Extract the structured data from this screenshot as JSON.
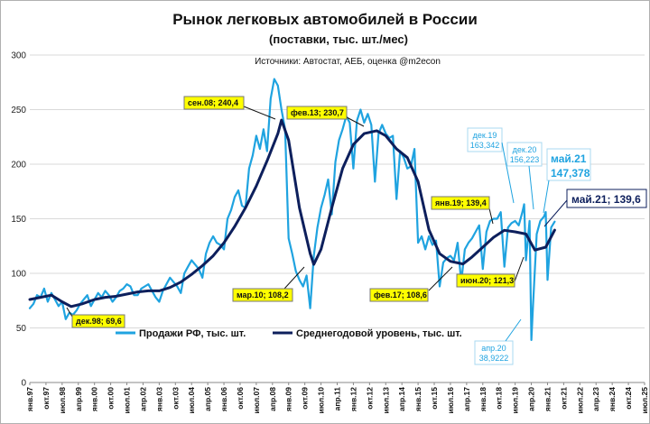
{
  "chart_data": {
    "type": "line",
    "title": "Рынок легковых автомобилей в России",
    "subtitle": "(поставки,  тыс. шт./мес)",
    "source": "Источники: Автостат, АЕБ, оценка @m2econ",
    "ylim": [
      0,
      300
    ],
    "yticks": [
      0,
      50,
      100,
      150,
      200,
      250,
      300
    ],
    "xticks": [
      "янв.97",
      "окт.97",
      "июл.98",
      "апр.99",
      "янв.00",
      "окт.00",
      "июл.01",
      "апр.02",
      "янв.03",
      "окт.03",
      "июл.04",
      "апр.05",
      "янв.06",
      "окт.06",
      "июл.07",
      "апр.08",
      "янв.09",
      "окт.09",
      "июл.10",
      "апр.11",
      "янв.12",
      "окт.12",
      "июл.13",
      "апр.14",
      "янв.15",
      "окт.15",
      "июл.16",
      "апр.17",
      "янв.18",
      "окт.18",
      "июл.19",
      "апр.20",
      "янв.21",
      "окт.21",
      "июл.22",
      "апр.23",
      "янв.24",
      "окт.24",
      "июл.25"
    ],
    "grid": true,
    "legend_position": "bottom-left",
    "series": [
      {
        "name": "Продажи РФ, тыс. шт.",
        "color": "#1fa3e0",
        "points": [
          [
            "1997-01",
            68
          ],
          [
            "1997-03",
            72
          ],
          [
            "1997-05",
            80
          ],
          [
            "1997-07",
            78
          ],
          [
            "1997-09",
            86
          ],
          [
            "1997-11",
            74
          ],
          [
            "1998-01",
            82
          ],
          [
            "1998-03",
            76
          ],
          [
            "1998-05",
            70
          ],
          [
            "1998-07",
            74
          ],
          [
            "1998-09",
            58
          ],
          [
            "1998-11",
            64
          ],
          [
            "1999-01",
            62
          ],
          [
            "1999-03",
            66
          ],
          [
            "1999-05",
            72
          ],
          [
            "1999-07",
            76
          ],
          [
            "1999-09",
            80
          ],
          [
            "1999-11",
            70
          ],
          [
            "2000-01",
            76
          ],
          [
            "2000-03",
            82
          ],
          [
            "2000-05",
            78
          ],
          [
            "2000-07",
            84
          ],
          [
            "2000-09",
            80
          ],
          [
            "2000-11",
            74
          ],
          [
            "2001-01",
            78
          ],
          [
            "2001-03",
            84
          ],
          [
            "2001-05",
            86
          ],
          [
            "2001-07",
            90
          ],
          [
            "2001-09",
            88
          ],
          [
            "2001-11",
            80
          ],
          [
            "2002-01",
            80
          ],
          [
            "2002-03",
            86
          ],
          [
            "2002-05",
            88
          ],
          [
            "2002-07",
            90
          ],
          [
            "2002-09",
            84
          ],
          [
            "2002-11",
            78
          ],
          [
            "2003-01",
            74
          ],
          [
            "2003-03",
            84
          ],
          [
            "2003-05",
            90
          ],
          [
            "2003-07",
            96
          ],
          [
            "2003-09",
            92
          ],
          [
            "2003-11",
            88
          ],
          [
            "2004-01",
            82
          ],
          [
            "2004-03",
            100
          ],
          [
            "2004-05",
            106
          ],
          [
            "2004-07",
            112
          ],
          [
            "2004-09",
            108
          ],
          [
            "2004-11",
            104
          ],
          [
            "2005-01",
            96
          ],
          [
            "2005-03",
            118
          ],
          [
            "2005-05",
            128
          ],
          [
            "2005-07",
            134
          ],
          [
            "2005-09",
            128
          ],
          [
            "2005-11",
            126
          ],
          [
            "2006-01",
            122
          ],
          [
            "2006-03",
            150
          ],
          [
            "2006-05",
            158
          ],
          [
            "2006-07",
            170
          ],
          [
            "2006-09",
            176
          ],
          [
            "2006-11",
            162
          ],
          [
            "2007-01",
            160
          ],
          [
            "2007-03",
            196
          ],
          [
            "2007-05",
            208
          ],
          [
            "2007-07",
            226
          ],
          [
            "2007-09",
            214
          ],
          [
            "2007-11",
            232
          ],
          [
            "2008-01",
            212
          ],
          [
            "2008-03",
            260
          ],
          [
            "2008-05",
            278
          ],
          [
            "2008-07",
            272
          ],
          [
            "2008-09",
            250
          ],
          [
            "2008-11",
            232
          ],
          [
            "2009-01",
            132
          ],
          [
            "2009-03",
            118
          ],
          [
            "2009-05",
            102
          ],
          [
            "2009-07",
            94
          ],
          [
            "2009-09",
            88
          ],
          [
            "2009-11",
            98
          ],
          [
            "2010-01",
            68
          ],
          [
            "2010-03",
            116
          ],
          [
            "2010-05",
            142
          ],
          [
            "2010-07",
            160
          ],
          [
            "2010-09",
            172
          ],
          [
            "2010-11",
            186
          ],
          [
            "2011-01",
            154
          ],
          [
            "2011-03",
            202
          ],
          [
            "2011-05",
            222
          ],
          [
            "2011-07",
            232
          ],
          [
            "2011-09",
            244
          ],
          [
            "2011-11",
            238
          ],
          [
            "2012-01",
            196
          ],
          [
            "2012-03",
            240
          ],
          [
            "2012-05",
            250
          ],
          [
            "2012-07",
            238
          ],
          [
            "2012-09",
            246
          ],
          [
            "2012-11",
            236
          ],
          [
            "2013-01",
            184
          ],
          [
            "2013-03",
            228
          ],
          [
            "2013-05",
            236
          ],
          [
            "2013-07",
            228
          ],
          [
            "2013-09",
            224
          ],
          [
            "2013-11",
            226
          ],
          [
            "2014-01",
            168
          ],
          [
            "2014-03",
            212
          ],
          [
            "2014-05",
            206
          ],
          [
            "2014-07",
            196
          ],
          [
            "2014-09",
            198
          ],
          [
            "2014-11",
            214
          ],
          [
            "2015-01",
            128
          ],
          [
            "2015-03",
            134
          ],
          [
            "2015-05",
            122
          ],
          [
            "2015-07",
            134
          ],
          [
            "2015-09",
            126
          ],
          [
            "2015-11",
            130
          ],
          [
            "2016-01",
            88
          ],
          [
            "2016-03",
            110
          ],
          [
            "2016-05",
            114
          ],
          [
            "2016-07",
            116
          ],
          [
            "2016-09",
            112
          ],
          [
            "2016-11",
            128
          ],
          [
            "2017-01",
            92
          ],
          [
            "2017-03",
            122
          ],
          [
            "2017-05",
            128
          ],
          [
            "2017-07",
            132
          ],
          [
            "2017-09",
            138
          ],
          [
            "2017-11",
            144
          ],
          [
            "2018-01",
            104
          ],
          [
            "2018-03",
            138
          ],
          [
            "2018-05",
            148
          ],
          [
            "2018-07",
            150
          ],
          [
            "2018-09",
            150
          ],
          [
            "2018-11",
            156
          ],
          [
            "2019-01",
            106
          ],
          [
            "2019-03",
            142
          ],
          [
            "2019-05",
            146
          ],
          [
            "2019-07",
            148
          ],
          [
            "2019-09",
            144
          ],
          [
            "2019-11",
            156
          ],
          [
            "2019-12",
            163.342
          ],
          [
            "2020-01",
            112
          ],
          [
            "2020-03",
            148
          ],
          [
            "2020-04",
            38.9222
          ],
          [
            "2020-05",
            72
          ],
          [
            "2020-07",
            136
          ],
          [
            "2020-09",
            148
          ],
          [
            "2020-11",
            152
          ],
          [
            "2020-12",
            156.223
          ],
          [
            "2021-01",
            94
          ],
          [
            "2021-03",
            142
          ],
          [
            "2021-05",
            147.378
          ]
        ]
      },
      {
        "name": "Среднегодовой уровень, тыс. шт.",
        "color": "#0d1f5c",
        "points": [
          [
            "1997-01",
            76
          ],
          [
            "1997-07",
            78
          ],
          [
            "1998-01",
            80
          ],
          [
            "1998-07",
            74
          ],
          [
            "1998-12",
            69.6
          ],
          [
            "1999-06",
            72
          ],
          [
            "2000-01",
            76
          ],
          [
            "2000-07",
            78
          ],
          [
            "2001-01",
            79
          ],
          [
            "2001-07",
            81
          ],
          [
            "2002-01",
            83
          ],
          [
            "2002-07",
            84
          ],
          [
            "2003-01",
            84
          ],
          [
            "2003-07",
            87
          ],
          [
            "2004-01",
            92
          ],
          [
            "2004-07",
            99
          ],
          [
            "2005-01",
            107
          ],
          [
            "2005-07",
            116
          ],
          [
            "2006-01",
            128
          ],
          [
            "2006-07",
            143
          ],
          [
            "2007-01",
            160
          ],
          [
            "2007-07",
            180
          ],
          [
            "2008-01",
            203
          ],
          [
            "2008-07",
            228
          ],
          [
            "2008-09",
            240.4
          ],
          [
            "2009-01",
            222
          ],
          [
            "2009-07",
            160
          ],
          [
            "2010-01",
            118
          ],
          [
            "2010-03",
            108.2
          ],
          [
            "2010-07",
            122
          ],
          [
            "2011-01",
            160
          ],
          [
            "2011-07",
            196
          ],
          [
            "2012-01",
            218
          ],
          [
            "2012-07",
            228
          ],
          [
            "2013-02",
            230.7
          ],
          [
            "2013-07",
            226
          ],
          [
            "2014-01",
            214
          ],
          [
            "2014-07",
            206
          ],
          [
            "2015-01",
            184
          ],
          [
            "2015-07",
            140
          ],
          [
            "2016-01",
            118
          ],
          [
            "2016-07",
            111
          ],
          [
            "2017-02",
            108.6
          ],
          [
            "2017-07",
            115
          ],
          [
            "2018-01",
            124
          ],
          [
            "2018-07",
            133
          ],
          [
            "2019-01",
            139.4
          ],
          [
            "2019-07",
            138
          ],
          [
            "2020-01",
            136
          ],
          [
            "2020-06",
            121.3
          ],
          [
            "2020-12",
            124
          ],
          [
            "2021-05",
            139.6
          ]
        ]
      }
    ],
    "annotations": [
      {
        "label": "сен.08;  240,4",
        "date": "2008-09",
        "value": 240.4
      },
      {
        "label": "мар.10;  108,2",
        "date": "2010-03",
        "value": 108.2
      },
      {
        "label": "фев.13;  230,7",
        "date": "2013-02",
        "value": 230.7
      },
      {
        "label": "дек.98;  69,6",
        "date": "1998-12",
        "value": 69.6
      },
      {
        "label": "янв.19;  139,4",
        "date": "2019-01",
        "value": 139.4
      },
      {
        "label": "фев.17;  108,6",
        "date": "2017-02",
        "value": 108.6
      },
      {
        "label": "июн.20;  121,3",
        "date": "2020-06",
        "value": 121.3
      }
    ],
    "blue_notes": [
      {
        "line1": "дек.19",
        "line2": "163,342"
      },
      {
        "line1": "дек.20",
        "line2": "156,223"
      },
      {
        "line1": "апр.20",
        "line2": "38,9222"
      }
    ],
    "highlight_blue": {
      "line1": "май.21",
      "line2": "147,378"
    },
    "highlight_navy": "май.21;  139,6"
  }
}
